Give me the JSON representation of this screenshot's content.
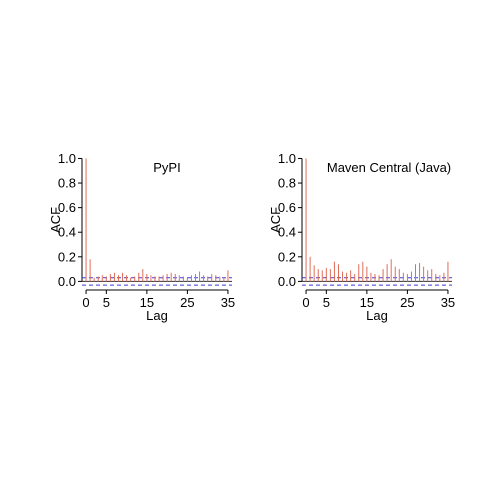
{
  "chart_data": [
    {
      "type": "bar",
      "title": "PyPI",
      "xlabel": "Lag",
      "ylabel": "ACF",
      "xlim": [
        -1,
        36
      ],
      "ylim": [
        -0.07,
        1.02
      ],
      "xticks": [
        0,
        5,
        15,
        25,
        35
      ],
      "yticks": [
        0.0,
        0.2,
        0.4,
        0.6,
        0.8,
        1.0
      ],
      "conf_bounds": [
        0.03,
        -0.03
      ],
      "colors": {
        "bars": "#e06c5a",
        "bounds": "#3a3ad8",
        "axis": "#000000"
      },
      "lags": [
        0,
        1,
        2,
        3,
        4,
        5,
        6,
        7,
        8,
        9,
        10,
        11,
        12,
        13,
        14,
        15,
        16,
        17,
        18,
        19,
        20,
        21,
        22,
        23,
        24,
        25,
        26,
        27,
        28,
        29,
        30,
        31,
        32,
        33,
        34,
        35
      ],
      "values": [
        1.0,
        0.18,
        0.03,
        0.04,
        0.05,
        0.04,
        0.06,
        0.07,
        0.05,
        0.07,
        0.05,
        0.03,
        0.04,
        0.07,
        0.1,
        0.06,
        0.05,
        0.04,
        0.04,
        0.05,
        0.06,
        0.07,
        0.06,
        0.05,
        0.04,
        0.03,
        0.05,
        0.06,
        0.08,
        0.05,
        0.04,
        0.06,
        0.05,
        0.04,
        0.03,
        0.09
      ]
    },
    {
      "type": "bar",
      "title": "Maven Central (Java)",
      "xlabel": "Lag",
      "ylabel": "ACF",
      "xlim": [
        -1,
        36
      ],
      "ylim": [
        -0.07,
        1.02
      ],
      "xticks": [
        0,
        5,
        15,
        25,
        35
      ],
      "yticks": [
        0.0,
        0.2,
        0.4,
        0.6,
        0.8,
        1.0
      ],
      "conf_bounds": [
        0.03,
        -0.03
      ],
      "colors": {
        "bars": "#e06c5a",
        "bounds": "#3a3ad8",
        "axis": "#000000"
      },
      "lags": [
        0,
        1,
        2,
        3,
        4,
        5,
        6,
        7,
        8,
        9,
        10,
        11,
        12,
        13,
        14,
        15,
        16,
        17,
        18,
        19,
        20,
        21,
        22,
        23,
        24,
        25,
        26,
        27,
        28,
        29,
        30,
        31,
        32,
        33,
        34,
        35
      ],
      "values": [
        1.0,
        0.2,
        0.13,
        0.1,
        0.09,
        0.11,
        0.1,
        0.16,
        0.14,
        0.08,
        0.07,
        0.09,
        0.06,
        0.14,
        0.16,
        0.12,
        0.07,
        0.06,
        0.05,
        0.1,
        0.14,
        0.18,
        0.12,
        0.1,
        0.07,
        0.06,
        0.08,
        0.14,
        0.15,
        0.12,
        0.09,
        0.1,
        0.06,
        0.05,
        0.07,
        0.16
      ]
    }
  ]
}
